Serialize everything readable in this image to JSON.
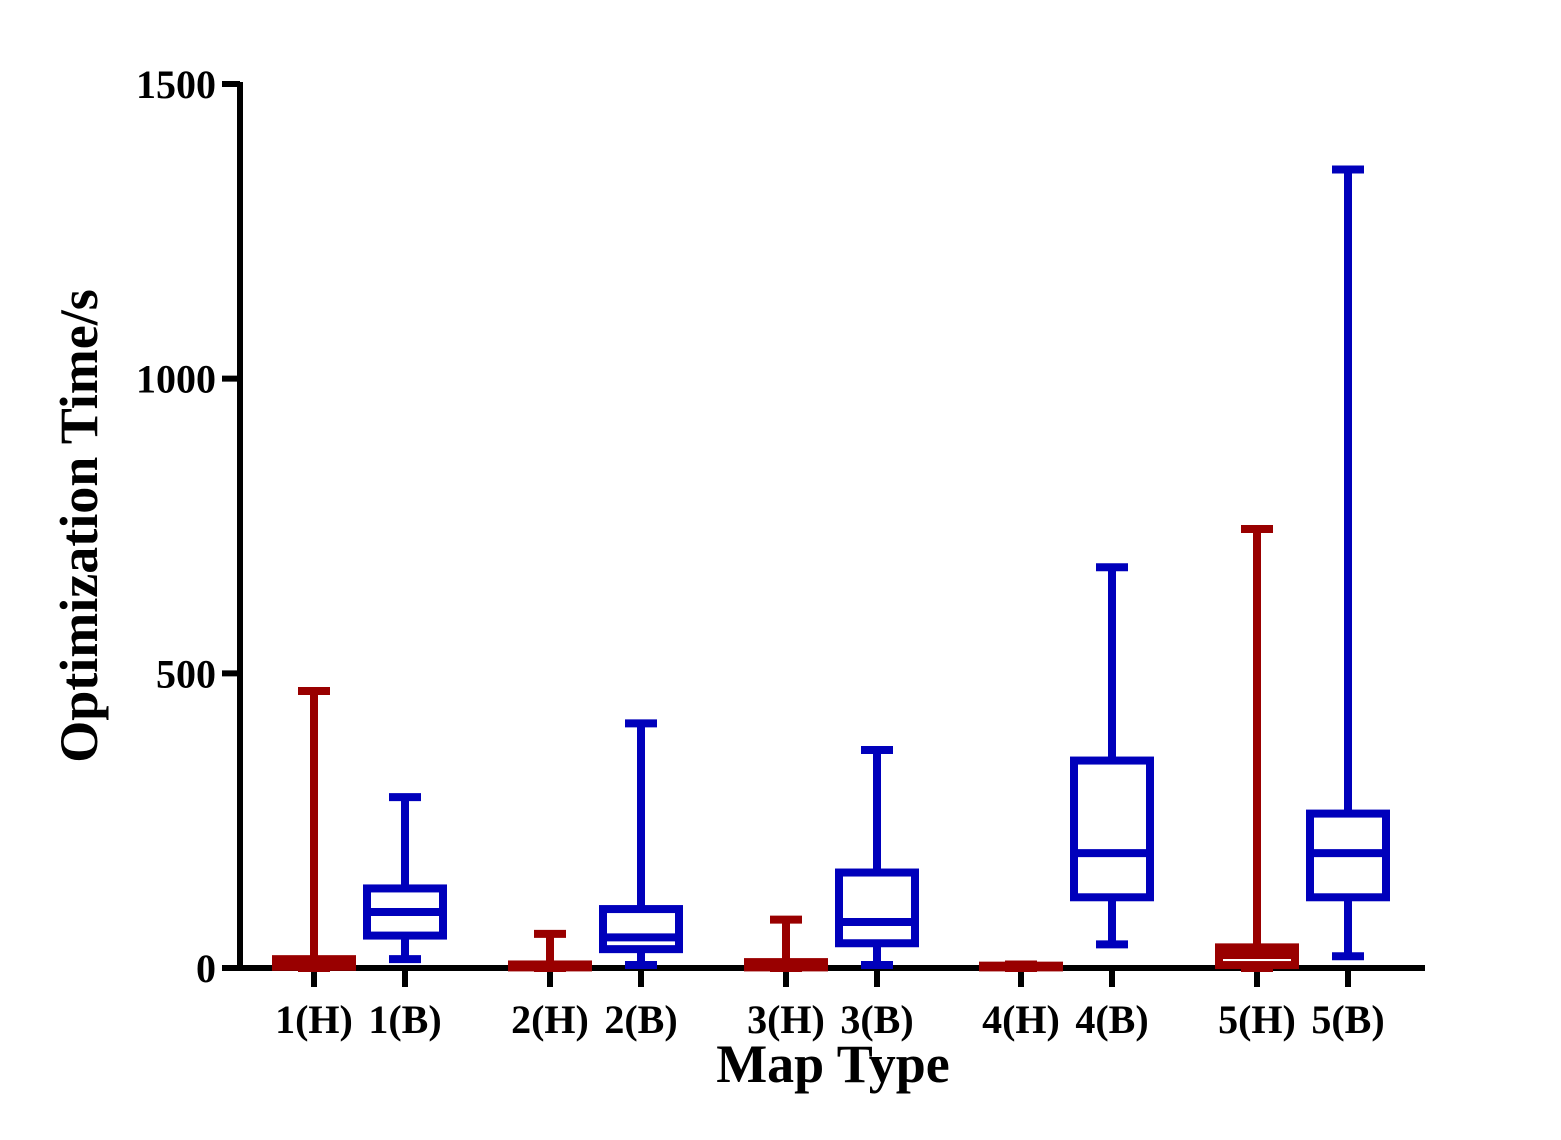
{
  "chart_data": {
    "type": "boxplot",
    "xlabel": "Map Type",
    "ylabel": "Optimization Time/s",
    "ylim": [
      0,
      1500
    ],
    "yticks": [
      0,
      500,
      1000,
      1500
    ],
    "grid": false,
    "colors": {
      "H": "#990000",
      "B": "#0000BB"
    },
    "categories": [
      "1(H)",
      "1(B)",
      "2(H)",
      "2(B)",
      "3(H)",
      "3(B)",
      "4(H)",
      "4(B)",
      "5(H)",
      "5(B)"
    ],
    "boxes": [
      {
        "label": "1(H)",
        "group": "H",
        "min": 0,
        "q1": 2,
        "median": 5,
        "q3": 15,
        "max": 470
      },
      {
        "label": "1(B)",
        "group": "B",
        "min": 15,
        "q1": 55,
        "median": 95,
        "q3": 135,
        "max": 290
      },
      {
        "label": "2(H)",
        "group": "H",
        "min": 0,
        "q1": 1,
        "median": 3,
        "q3": 6,
        "max": 58
      },
      {
        "label": "2(B)",
        "group": "B",
        "min": 5,
        "q1": 32,
        "median": 52,
        "q3": 100,
        "max": 415
      },
      {
        "label": "3(H)",
        "group": "H",
        "min": 0,
        "q1": 1,
        "median": 3,
        "q3": 10,
        "max": 82
      },
      {
        "label": "3(B)",
        "group": "B",
        "min": 5,
        "q1": 42,
        "median": 78,
        "q3": 162,
        "max": 370
      },
      {
        "label": "4(H)",
        "group": "H",
        "min": 0,
        "q1": 1,
        "median": 2,
        "q3": 4,
        "max": 6
      },
      {
        "label": "4(B)",
        "group": "B",
        "min": 40,
        "q1": 120,
        "median": 195,
        "q3": 352,
        "max": 680
      },
      {
        "label": "5(H)",
        "group": "H",
        "min": 0,
        "q1": 5,
        "median": 22,
        "q3": 35,
        "max": 745
      },
      {
        "label": "5(B)",
        "group": "B",
        "min": 20,
        "q1": 120,
        "median": 195,
        "q3": 262,
        "max": 1355
      }
    ]
  }
}
